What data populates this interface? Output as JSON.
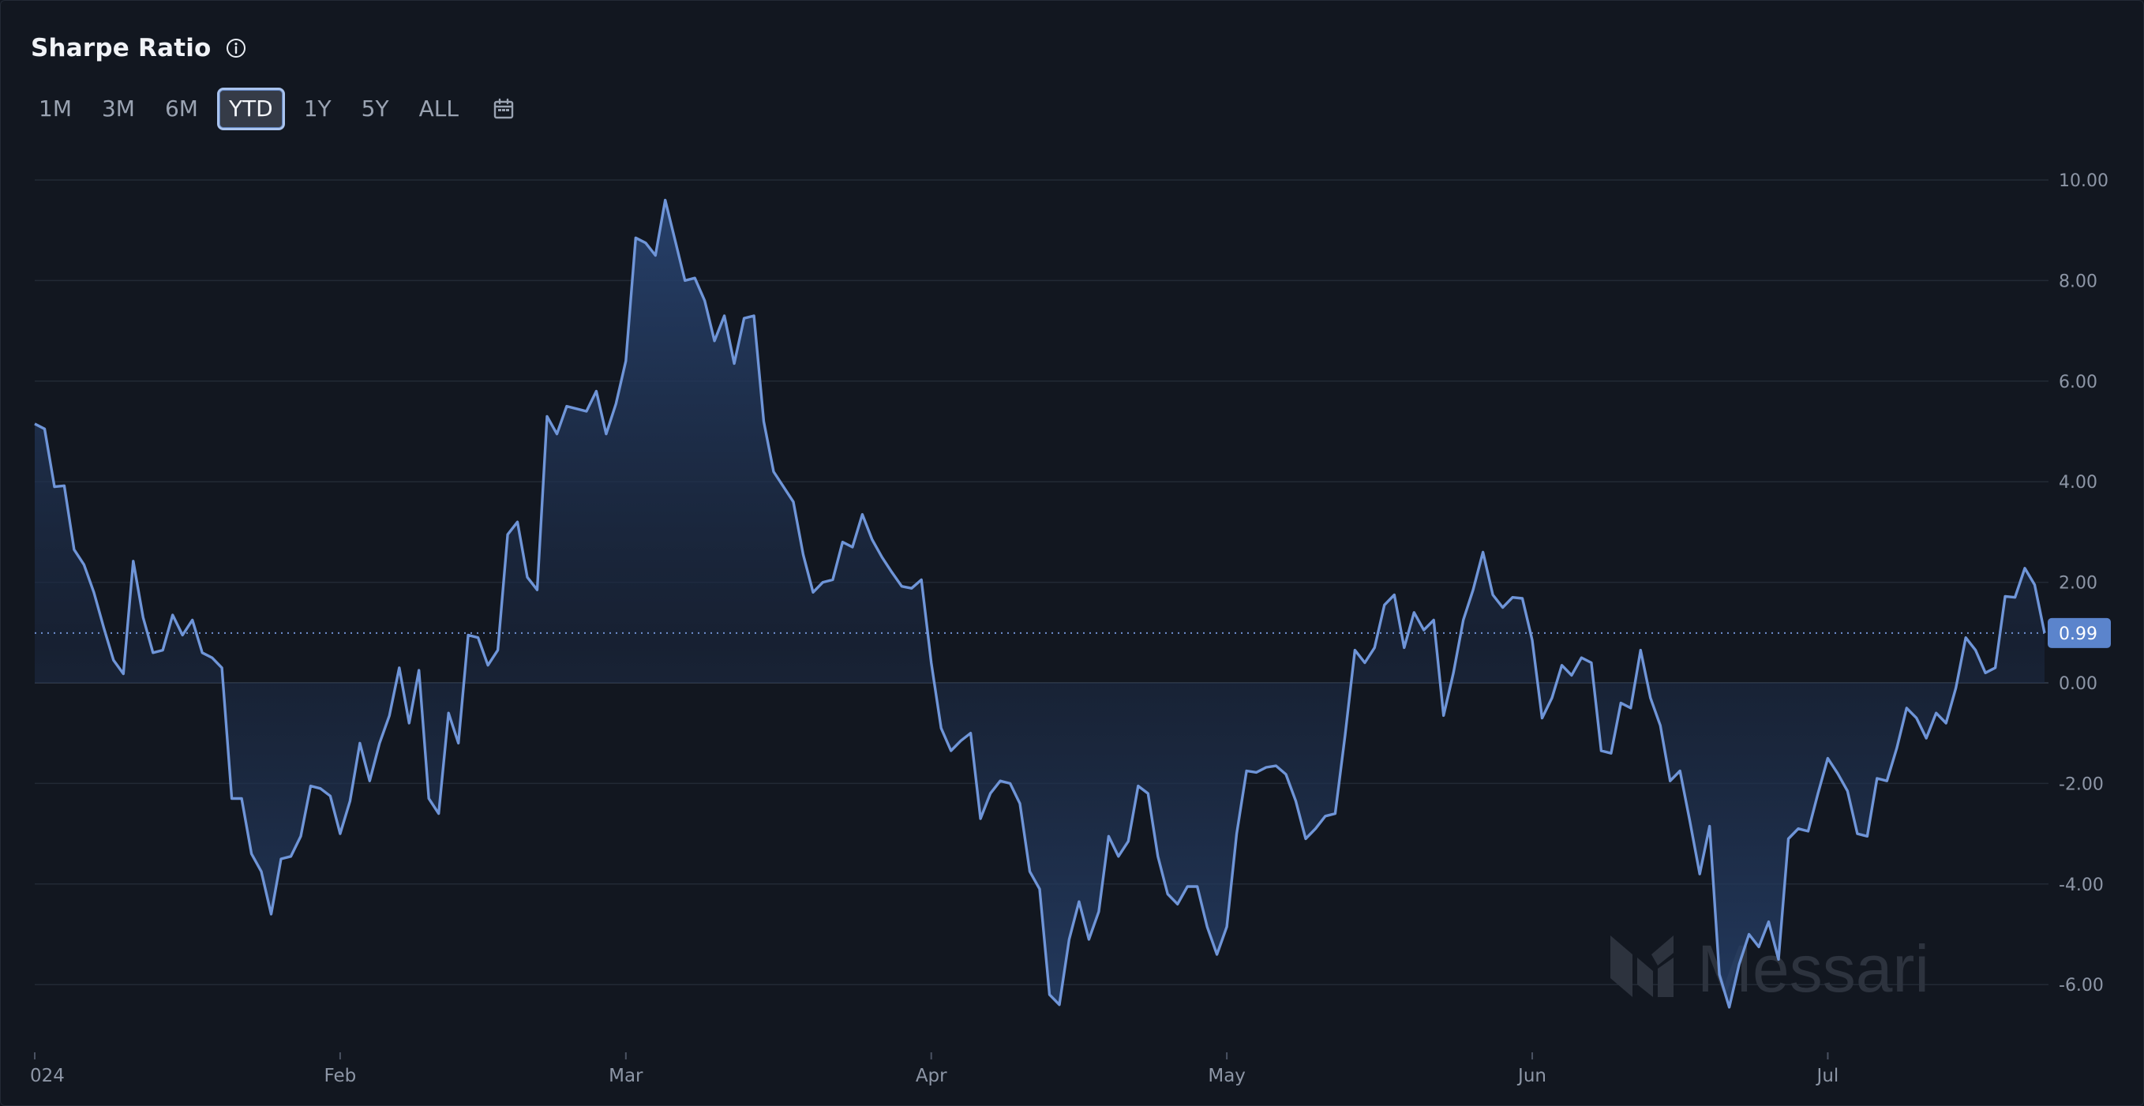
{
  "header": {
    "title": "Sharpe Ratio",
    "info_icon": "info-icon"
  },
  "ranges": {
    "items": [
      "1M",
      "3M",
      "6M",
      "YTD",
      "1Y",
      "5Y",
      "ALL"
    ],
    "selected": "YTD",
    "calendar_icon": "calendar-icon"
  },
  "watermark": {
    "text": "Messari",
    "logo_icon": "messari-logo-icon"
  },
  "colors": {
    "line": "#6f95d8",
    "fill_top": "#27426e",
    "background": "#121720",
    "grid": "#252c38",
    "marker_bg": "#5b84cc"
  },
  "chart_data": {
    "type": "area",
    "title": "Sharpe Ratio",
    "xlabel": "",
    "ylabel": "",
    "ylim": [
      -7,
      10
    ],
    "y_ticks": [
      {
        "value": 10,
        "label": "10.00"
      },
      {
        "value": 8,
        "label": "8.00"
      },
      {
        "value": 6,
        "label": "6.00"
      },
      {
        "value": 4,
        "label": "4.00"
      },
      {
        "value": 2,
        "label": "2.00"
      },
      {
        "value": 0,
        "label": "0.00"
      },
      {
        "value": -2,
        "label": "-2.00"
      },
      {
        "value": -4,
        "label": "-4.00"
      },
      {
        "value": -6,
        "label": "-6.00"
      }
    ],
    "x_ticks": [
      {
        "date": "2024-01-01",
        "label": "024"
      },
      {
        "date": "2024-02-01",
        "label": "Feb"
      },
      {
        "date": "2024-03-01",
        "label": "Mar"
      },
      {
        "date": "2024-04-01",
        "label": "Apr"
      },
      {
        "date": "2024-05-01",
        "label": "May"
      },
      {
        "date": "2024-06-01",
        "label": "Jun"
      },
      {
        "date": "2024-07-01",
        "label": "Jul"
      }
    ],
    "current_value": 0.99,
    "current_label": "0.99",
    "grid": true,
    "series": [
      {
        "x_start": "2024-01-01",
        "x_end": "2024-07-23",
        "values": [
          5.15,
          5.05,
          3.9,
          3.92,
          2.65,
          2.35,
          1.8,
          1.1,
          0.45,
          0.18,
          2.42,
          1.3,
          0.6,
          0.65,
          1.35,
          0.95,
          1.25,
          0.6,
          0.5,
          0.3,
          -2.3,
          -2.3,
          -3.4,
          -3.75,
          -4.6,
          -3.5,
          -3.45,
          -3.05,
          -2.05,
          -2.1,
          -2.25,
          -3.0,
          -2.35,
          -1.2,
          -1.95,
          -1.2,
          -0.65,
          0.3,
          -0.8,
          0.25,
          -2.3,
          -2.6,
          -0.6,
          -1.2,
          0.95,
          0.9,
          0.35,
          0.65,
          2.95,
          3.2,
          2.1,
          1.85,
          5.3,
          4.95,
          5.5,
          5.45,
          5.4,
          5.8,
          4.95,
          5.55,
          6.4,
          8.85,
          8.75,
          8.5,
          9.6,
          8.8,
          8.0,
          8.05,
          7.6,
          6.8,
          7.3,
          6.35,
          7.25,
          7.3,
          5.2,
          4.2,
          3.9,
          3.6,
          2.55,
          1.8,
          2.0,
          2.05,
          2.8,
          2.7,
          3.35,
          2.85,
          2.5,
          2.2,
          1.92,
          1.88,
          2.05,
          0.4,
          -0.9,
          -1.35,
          -1.15,
          -1.0,
          -2.7,
          -2.2,
          -1.95,
          -2.0,
          -2.4,
          -3.75,
          -4.1,
          -6.2,
          -6.4,
          -5.1,
          -4.35,
          -5.1,
          -4.55,
          -3.05,
          -3.45,
          -3.15,
          -2.05,
          -2.2,
          -3.45,
          -4.2,
          -4.4,
          -4.05,
          -4.05,
          -4.85,
          -5.4,
          -4.85,
          -3.0,
          -1.75,
          -1.78,
          -1.68,
          -1.65,
          -1.82,
          -2.35,
          -3.1,
          -2.9,
          -2.65,
          -2.6,
          -1.05,
          0.65,
          0.4,
          0.7,
          1.55,
          1.75,
          0.7,
          1.4,
          1.05,
          1.25,
          -0.65,
          0.2,
          1.25,
          1.85,
          2.6,
          1.75,
          1.5,
          1.7,
          1.68,
          0.85,
          -0.7,
          -0.3,
          0.35,
          0.15,
          0.5,
          0.4,
          -1.35,
          -1.4,
          -0.4,
          -0.5,
          0.65,
          -0.3,
          -0.85,
          -1.95,
          -1.75,
          -2.75,
          -3.8,
          -2.85,
          -5.8,
          -6.45,
          -5.6,
          -5.0,
          -5.25,
          -4.75,
          -5.5,
          -3.1,
          -2.9,
          -2.95,
          -2.2,
          -1.5,
          -1.8,
          -2.15,
          -3.0,
          -3.05,
          -1.9,
          -1.95,
          -1.3,
          -0.5,
          -0.7,
          -1.1,
          -0.6,
          -0.8,
          -0.1,
          0.9,
          0.65,
          0.2,
          0.3,
          1.72,
          1.7,
          2.28,
          1.95,
          0.99
        ]
      }
    ]
  }
}
